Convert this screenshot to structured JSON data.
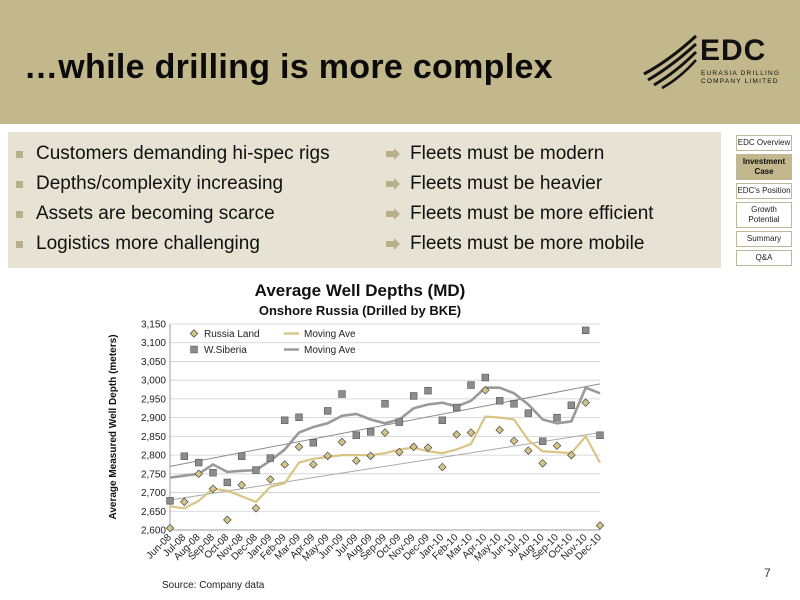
{
  "slide": {
    "title": "…while drilling is more complex",
    "page_number": "7",
    "source": "Source: Company data"
  },
  "logo": {
    "main": "EDC",
    "line1": "EURASIA DRILLING",
    "line2": "COMPANY LIMITED"
  },
  "bullets_left": [
    "Customers demanding hi-spec rigs",
    "Depths/complexity increasing",
    "Assets are becoming scarce",
    "Logistics more challenging"
  ],
  "bullets_right": [
    "Fleets must be modern",
    "Fleets must be heavier",
    "Fleets must be more efficient",
    "Fleets must be more mobile"
  ],
  "nav": [
    {
      "label": "EDC Overview",
      "active": false
    },
    {
      "label": "Investment Case",
      "active": true
    },
    {
      "label": "EDC's Position",
      "active": false
    },
    {
      "label": "Growth Potential",
      "active": false
    },
    {
      "label": "Summary",
      "active": false
    },
    {
      "label": "Q&A",
      "active": false
    }
  ],
  "colors": {
    "header": "#c2b88c",
    "bullet_box": "#e6e3d4",
    "russia_land": "#d4c48a",
    "russia_land_line": "#d8c584",
    "wsiberia": "#8c8c8c",
    "wsiberia_line": "#9a9a9a",
    "trend": "#8c8c8c"
  },
  "chart_data": {
    "type": "line",
    "title": "Average Well Depths (MD)",
    "subtitle": "Onshore Russia (Drilled by BKE)",
    "ylabel": "Average Measured Well Depth (meters)",
    "xlabel": "",
    "ylim": [
      2600,
      3150
    ],
    "yticks": [
      2600,
      2650,
      2700,
      2750,
      2800,
      2850,
      2900,
      2950,
      3000,
      3050,
      3100,
      3150
    ],
    "grid": true,
    "legend_position": "top-left",
    "categories": [
      "Jun-08",
      "Jul-08",
      "Aug-08",
      "Sep-08",
      "Oct-08",
      "Nov-08",
      "Dec-08",
      "Jan-09",
      "Feb-09",
      "Mar-09",
      "Apr-09",
      "May-09",
      "Jun-09",
      "Jul-09",
      "Aug-09",
      "Sep-09",
      "Oct-09",
      "Nov-09",
      "Dec-09",
      "Jan-10",
      "Feb-10",
      "Mar-10",
      "Apr-10",
      "May-10",
      "Jun-10",
      "Jul-10",
      "Aug-10",
      "Sep-10",
      "Oct-10",
      "Nov-10",
      "Dec-10"
    ],
    "series": [
      {
        "name": "Russia Land",
        "kind": "marker",
        "marker": "diamond",
        "values": [
          2605,
          2675,
          2750,
          2710,
          2627,
          2720,
          2658,
          2735,
          2775,
          2822,
          2775,
          2798,
          2835,
          2785,
          2798,
          2860,
          2808,
          2822,
          2820,
          2768,
          2855,
          2860,
          2973,
          2867,
          2838,
          2812,
          2778,
          2825,
          2800,
          2940,
          2612
        ]
      },
      {
        "name": "Moving Ave",
        "kind": "line",
        "of": "Russia Land",
        "values": [
          2663,
          2658,
          2678,
          2710,
          2705,
          2690,
          2675,
          2715,
          2725,
          2780,
          2790,
          2795,
          2800,
          2800,
          2800,
          2805,
          2815,
          2820,
          2810,
          2805,
          2815,
          2830,
          2903,
          2900,
          2895,
          2840,
          2810,
          2808,
          2805,
          2850,
          2780
        ]
      },
      {
        "name": "W.Siberia",
        "kind": "marker",
        "marker": "square",
        "values": [
          2678,
          2797,
          2780,
          2753,
          2727,
          2797,
          2760,
          2792,
          2893,
          2901,
          2833,
          2918,
          2963,
          2853,
          2862,
          2937,
          2888,
          2958,
          2972,
          2893,
          2927,
          2987,
          3007,
          2945,
          2937,
          2912,
          2837,
          2900,
          2933,
          3133,
          2853
        ]
      },
      {
        "name": "Moving Ave",
        "kind": "line",
        "of": "W.Siberia",
        "values": [
          2740,
          2745,
          2750,
          2775,
          2755,
          2758,
          2760,
          2785,
          2815,
          2860,
          2875,
          2885,
          2905,
          2910,
          2895,
          2885,
          2895,
          2925,
          2935,
          2940,
          2930,
          2945,
          2980,
          2980,
          2965,
          2935,
          2895,
          2885,
          2890,
          2980,
          2965
        ]
      }
    ],
    "trendlines": [
      {
        "of": "W.Siberia",
        "start": 2770,
        "end": 2990
      },
      {
        "of": "Russia Land",
        "start": 2680,
        "end": 2860
      }
    ]
  }
}
